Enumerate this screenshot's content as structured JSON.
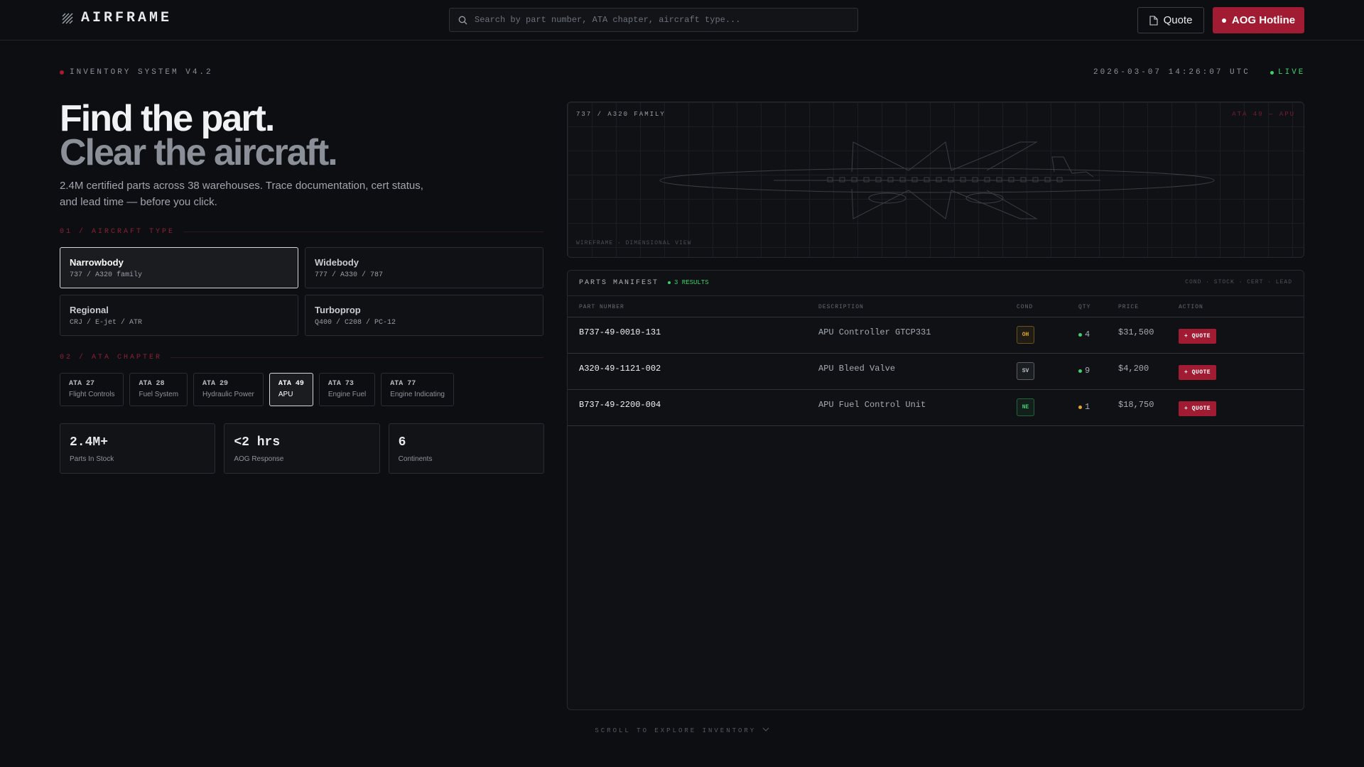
{
  "header": {
    "logo": "AIRFRAME",
    "search_placeholder": "Search by part number, ATA chapter, aircraft type...",
    "quote_button": "Quote",
    "aog_button": "AOG Hotline"
  },
  "status": {
    "system": "INVENTORY SYSTEM V4.2",
    "timestamp": "2026-03-07 14:26:07 UTC",
    "live": "LIVE"
  },
  "hero": {
    "title_line1": "Find the part.",
    "title_line2": "Clear the aircraft.",
    "description": "2.4M certified parts across 38 warehouses. Trace documentation, cert status, and lead time — before you click."
  },
  "aircraft_section": {
    "label": "01 / AIRCRAFT TYPE",
    "options": [
      {
        "name": "Narrowbody",
        "detail": "737 / A320 family",
        "selected": true
      },
      {
        "name": "Widebody",
        "detail": "777 / A330 / 787",
        "selected": false
      },
      {
        "name": "Regional",
        "detail": "CRJ / E-jet / ATR",
        "selected": false
      },
      {
        "name": "Turboprop",
        "detail": "Q400 / C208 / PC-12",
        "selected": false
      }
    ]
  },
  "ata_section": {
    "label": "02 / ATA CHAPTER",
    "chips": [
      {
        "code": "ATA 27",
        "name": "Flight Controls",
        "selected": false
      },
      {
        "code": "ATA 28",
        "name": "Fuel System",
        "selected": false
      },
      {
        "code": "ATA 29",
        "name": "Hydraulic Power",
        "selected": false
      },
      {
        "code": "ATA 49",
        "name": "APU",
        "selected": true
      },
      {
        "code": "ATA 73",
        "name": "Engine Fuel",
        "selected": false
      },
      {
        "code": "ATA 77",
        "name": "Engine Indicating",
        "selected": false
      }
    ]
  },
  "stats": [
    {
      "value": "2.4M+",
      "label": "Parts In Stock"
    },
    {
      "value": "<2 hrs",
      "label": "AOG Response"
    },
    {
      "value": "6",
      "label": "Continents"
    }
  ],
  "wireframe": {
    "family": "737 / A320 FAMILY",
    "chapter": "ATA 49 — APU",
    "caption": "WIREFRAME · DIMENSIONAL VIEW"
  },
  "manifest": {
    "title": "PARTS MANIFEST",
    "results": "3 RESULTS",
    "legend": "COND · STOCK · CERT · LEAD",
    "columns": [
      "PART NUMBER",
      "DESCRIPTION",
      "COND",
      "QTY",
      "PRICE",
      "ACTION"
    ],
    "rows": [
      {
        "part": "B737-49-0010-131",
        "description": "APU Controller GTCP331",
        "cond": "OH",
        "cond_color": "#e0a526",
        "qty": "4",
        "qty_color": "#3ecf6e",
        "price": "$31,500",
        "action": "+ QUOTE"
      },
      {
        "part": "A320-49-1121-002",
        "description": "APU Bleed Valve",
        "cond": "SV",
        "cond_color": "#b8bcc4",
        "qty": "9",
        "qty_color": "#3ecf6e",
        "price": "$4,200",
        "action": "+ QUOTE"
      },
      {
        "part": "B737-49-2200-004",
        "description": "APU Fuel Control Unit",
        "cond": "NE",
        "cond_color": "#3ecf6e",
        "qty": "1",
        "qty_color": "#e0a526",
        "price": "$18,750",
        "action": "+ QUOTE"
      }
    ]
  },
  "scroll_hint": "SCROLL TO EXPLORE INVENTORY"
}
